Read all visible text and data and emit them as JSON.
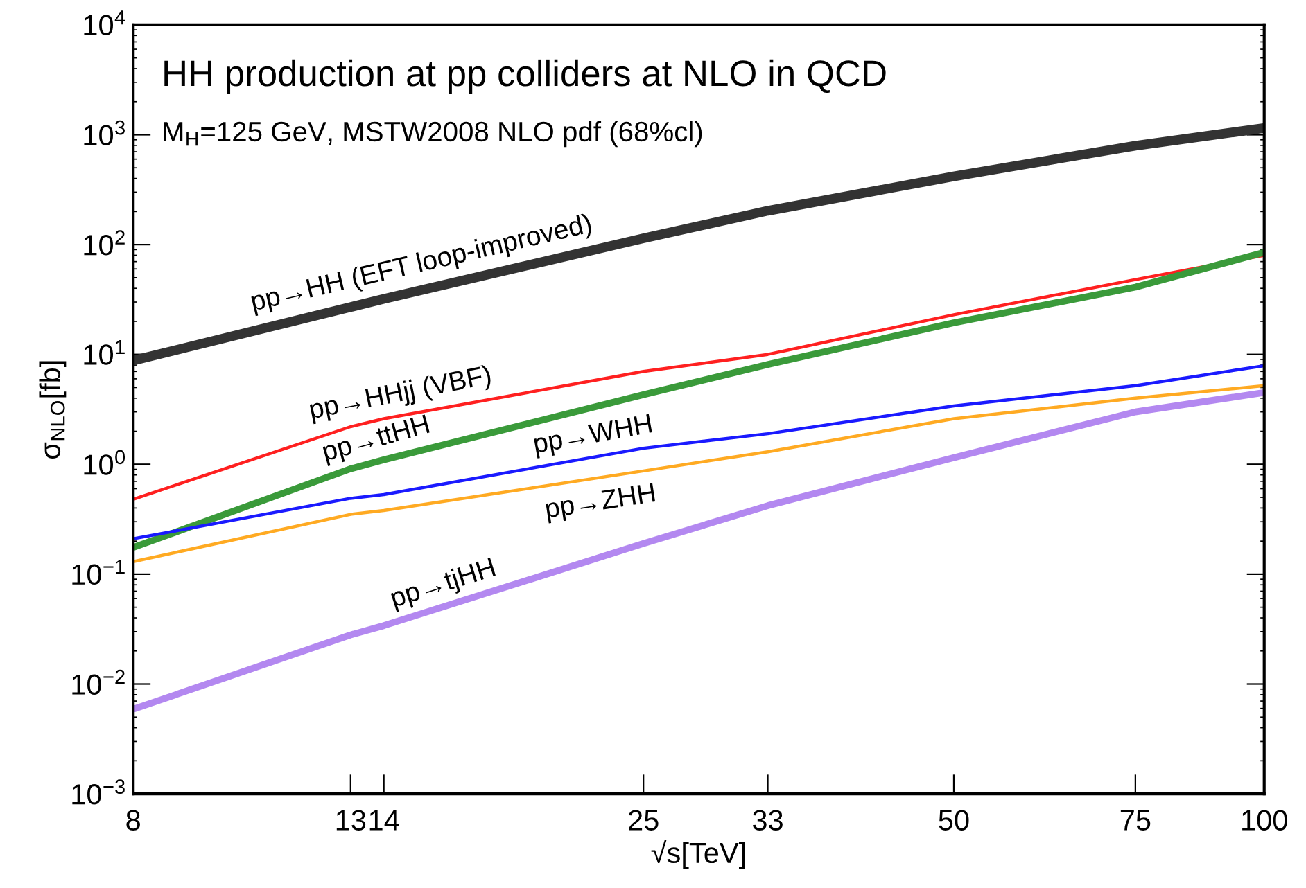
{
  "chart_data": {
    "type": "line",
    "title": "HH production at pp colliders at NLO in QCD",
    "subtitle": "M$_{H}$=125 GeV, MSTW2008 NLO pdf (68%cl)",
    "xlabel": "√s[TeV]",
    "ylabel": "σ$_{NLO}$[fb]",
    "log": "xy",
    "grid": false,
    "legend": false,
    "marker": "none",
    "line_style": "solid",
    "x": [
      8,
      13,
      14,
      25,
      33,
      50,
      75,
      100
    ],
    "series": [
      {
        "name": "pp→HH (EFT loop-improved)",
        "color": "#333333",
        "values": [
          8.8,
          27,
          32,
          114,
          203,
          418,
          795,
          1150
        ]
      },
      {
        "name": "pp→HHjj (VBF)",
        "color": "#ff2020",
        "values": [
          0.48,
          2.2,
          2.6,
          7.0,
          10,
          23,
          48,
          80
        ]
      },
      {
        "name": "pp→ttHH",
        "color": "#3a9a3a",
        "values": [
          0.175,
          0.91,
          1.1,
          4.3,
          8.1,
          19.4,
          41,
          85
        ]
      },
      {
        "name": "pp→WHH",
        "color": "#1a1aff",
        "values": [
          0.21,
          0.49,
          0.53,
          1.4,
          1.9,
          3.4,
          5.2,
          7.9
        ]
      },
      {
        "name": "pp→ZHH",
        "color": "#ffaa22",
        "values": [
          0.13,
          0.35,
          0.38,
          0.87,
          1.3,
          2.6,
          4.0,
          5.2
        ]
      },
      {
        "name": "pp→tjHH",
        "color": "#b388f0",
        "values": [
          0.0059,
          0.028,
          0.034,
          0.19,
          0.42,
          1.15,
          3.0,
          4.5
        ]
      }
    ],
    "xlim": [
      8,
      100
    ],
    "ylim": [
      0.001,
      10000
    ],
    "xticks": [
      8,
      13,
      14,
      25,
      33,
      50,
      75,
      100
    ],
    "yticks": [
      {
        "value": 0.001,
        "label": "10$^{−3}$"
      },
      {
        "value": 0.01,
        "label": "10$^{−2}$"
      },
      {
        "value": 0.1,
        "label": "10$^{−1}$"
      },
      {
        "value": 1,
        "label": "10$^{0}$"
      },
      {
        "value": 10,
        "label": "10$^{1}$"
      },
      {
        "value": 100,
        "label": "10$^{2}$"
      },
      {
        "value": 1000,
        "label": "10$^{3}$"
      },
      {
        "value": 10000,
        "label": "10$^{4}$"
      }
    ]
  }
}
